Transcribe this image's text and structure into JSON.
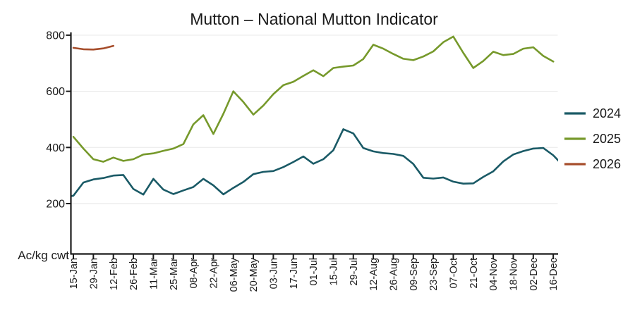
{
  "chart": {
    "title": "Mutton – National Mutton Indicator",
    "unit_label": "Ac/kg cwt"
  },
  "chart_data": {
    "type": "line",
    "title": "Mutton – National Mutton Indicator",
    "xlabel": "",
    "ylabel": "Ac/kg cwt",
    "ylim": [
      22,
      810
    ],
    "y_ticks": [
      200,
      400,
      600,
      800
    ],
    "grid": "horizontal",
    "legend_position": "right",
    "x_tick_interval_weeks": 2,
    "categories": [
      "15-Jan",
      "29-Jan",
      "12-Feb",
      "26-Feb",
      "11-Mar",
      "25-Mar",
      "08-Apr",
      "22-Apr",
      "06-May",
      "20-May",
      "03-Jun",
      "17-Jun",
      "01-Jul",
      "15-Jul",
      "29-Jul",
      "12-Aug",
      "26-Aug",
      "09-Sep",
      "23-Sep",
      "07-Oct",
      "21-Oct",
      "04-Nov",
      "18-Nov",
      "02-Dec",
      "16-Dec"
    ],
    "axis_color": "#1a1a1a",
    "gridline_color": "#ebebeb",
    "series": [
      {
        "name": "2024",
        "color": "#1a5a66",
        "start_week": 0,
        "values": [
          222,
          228,
          275,
          286,
          291,
          300,
          302,
          252,
          232,
          288,
          250,
          234,
          247,
          259,
          288,
          265,
          233,
          256,
          277,
          305,
          313,
          316,
          330,
          348,
          368,
          342,
          358,
          390,
          465,
          450,
          398,
          386,
          380,
          377,
          370,
          341,
          292,
          289,
          293,
          278,
          271,
          272,
          295,
          315,
          350,
          375,
          387,
          396,
          398,
          372,
          335
        ]
      },
      {
        "name": "2025",
        "color": "#76992b",
        "start_week": 1,
        "values": [
          438,
          396,
          358,
          349,
          364,
          352,
          358,
          375,
          379,
          388,
          396,
          412,
          482,
          515,
          448,
          520,
          600,
          562,
          517,
          549,
          590,
          622,
          634,
          655,
          675,
          654,
          683,
          688,
          692,
          715,
          766,
          752,
          733,
          716,
          711,
          724,
          742,
          775,
          795,
          737,
          683,
          708,
          741,
          729,
          733,
          752,
          757,
          726,
          706
        ]
      },
      {
        "name": "2026",
        "color": "#a64d2b",
        "start_week": 1,
        "values": [
          755,
          750,
          749,
          753,
          762
        ]
      }
    ]
  }
}
